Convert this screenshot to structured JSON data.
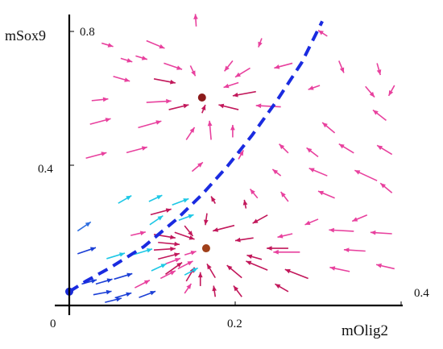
{
  "chart_data": {
    "type": "quiver",
    "xlabel": "mOlig2",
    "ylabel": "mSox9",
    "xlim": [
      0,
      0.4
    ],
    "ylim": [
      0,
      0.8
    ],
    "origin_label": "0",
    "x_ticks": [
      {
        "value": 0.2,
        "label": "0.2"
      },
      {
        "value": 0.4,
        "label": "0.4"
      }
    ],
    "y_ticks": [
      {
        "value": 0.4,
        "label": "0.4"
      },
      {
        "value": 0.8,
        "label": "0.8"
      }
    ],
    "colors": {
      "arrow_magenta": "#e8419e",
      "arrow_darkmagenta": "#c2185b",
      "arrow_cyan": "#1ec8e6",
      "arrow_blue": "#1b3fd6",
      "arrow_midblue": "#2f6fe0",
      "separatrix": "#1a2be0",
      "attractor": "#8b1a1a",
      "attractor_low": "#a0401a",
      "origin_point": "#1a2bd6",
      "axis": "#000000"
    },
    "separatrix": {
      "style": "dashed",
      "x": [
        0.0,
        0.02,
        0.05,
        0.09,
        0.13,
        0.16,
        0.19,
        0.22,
        0.25,
        0.28,
        0.305
      ],
      "y": [
        0.04,
        0.07,
        0.11,
        0.17,
        0.25,
        0.32,
        0.4,
        0.49,
        0.59,
        0.7,
        0.82
      ]
    },
    "fixed_points": [
      {
        "x": 0.16,
        "y": 0.6,
        "type": "stable"
      },
      {
        "x": 0.165,
        "y": 0.165,
        "type": "stable"
      },
      {
        "x": 0.0,
        "y": 0.04,
        "type": "stable"
      }
    ],
    "arrows": [
      {
        "x": 0.153,
        "y": 0.805,
        "dx": -0.001,
        "dy": 0.036,
        "color": "arrow_magenta"
      },
      {
        "x": 0.039,
        "y": 0.757,
        "dx": 0.014,
        "dy": -0.01,
        "color": "arrow_magenta"
      },
      {
        "x": 0.093,
        "y": 0.764,
        "dx": 0.022,
        "dy": -0.022,
        "color": "arrow_magenta"
      },
      {
        "x": 0.232,
        "y": 0.771,
        "dx": -0.004,
        "dy": -0.026,
        "color": "arrow_magenta"
      },
      {
        "x": 0.311,
        "y": 0.777,
        "dx": -0.011,
        "dy": 0.017,
        "color": "arrow_magenta"
      },
      {
        "x": 0.062,
        "y": 0.713,
        "dx": 0.014,
        "dy": -0.01,
        "color": "arrow_magenta"
      },
      {
        "x": 0.08,
        "y": 0.72,
        "dx": 0.014,
        "dy": -0.01,
        "color": "arrow_magenta"
      },
      {
        "x": 0.114,
        "y": 0.699,
        "dx": 0.022,
        "dy": -0.018,
        "color": "arrow_magenta"
      },
      {
        "x": 0.146,
        "y": 0.692,
        "dx": 0.006,
        "dy": -0.03,
        "color": "arrow_magenta"
      },
      {
        "x": 0.197,
        "y": 0.706,
        "dx": -0.01,
        "dy": -0.03,
        "color": "arrow_magenta"
      },
      {
        "x": 0.218,
        "y": 0.685,
        "dx": -0.018,
        "dy": -0.026,
        "color": "arrow_magenta"
      },
      {
        "x": 0.269,
        "y": 0.699,
        "dx": -0.022,
        "dy": -0.014,
        "color": "arrow_magenta"
      },
      {
        "x": 0.325,
        "y": 0.706,
        "dx": 0.006,
        "dy": -0.035,
        "color": "arrow_magenta"
      },
      {
        "x": 0.371,
        "y": 0.699,
        "dx": 0.004,
        "dy": -0.034,
        "color": "arrow_magenta"
      },
      {
        "x": 0.053,
        "y": 0.661,
        "dx": 0.02,
        "dy": -0.014,
        "color": "arrow_magenta"
      },
      {
        "x": 0.102,
        "y": 0.654,
        "dx": 0.026,
        "dy": -0.012,
        "color": "arrow_darkmagenta"
      },
      {
        "x": 0.204,
        "y": 0.643,
        "dx": -0.018,
        "dy": -0.014,
        "color": "arrow_magenta"
      },
      {
        "x": 0.225,
        "y": 0.617,
        "dx": -0.028,
        "dy": -0.012,
        "color": "arrow_darkmagenta"
      },
      {
        "x": 0.302,
        "y": 0.635,
        "dx": -0.014,
        "dy": -0.012,
        "color": "arrow_magenta"
      },
      {
        "x": 0.357,
        "y": 0.632,
        "dx": 0.011,
        "dy": -0.031,
        "color": "arrow_magenta"
      },
      {
        "x": 0.392,
        "y": 0.635,
        "dx": -0.007,
        "dy": -0.03,
        "color": "arrow_magenta"
      },
      {
        "x": 0.027,
        "y": 0.591,
        "dx": 0.02,
        "dy": 0.005,
        "color": "arrow_magenta"
      },
      {
        "x": 0.093,
        "y": 0.586,
        "dx": 0.03,
        "dy": 0.004,
        "color": "arrow_magenta"
      },
      {
        "x": 0.12,
        "y": 0.565,
        "dx": 0.024,
        "dy": 0.014,
        "color": "arrow_darkmagenta"
      },
      {
        "x": 0.16,
        "y": 0.555,
        "dx": 0.004,
        "dy": 0.024,
        "color": "arrow_darkmagenta"
      },
      {
        "x": 0.204,
        "y": 0.565,
        "dx": -0.024,
        "dy": 0.014,
        "color": "arrow_darkmagenta"
      },
      {
        "x": 0.255,
        "y": 0.573,
        "dx": -0.03,
        "dy": 0.004,
        "color": "arrow_magenta"
      },
      {
        "x": 0.025,
        "y": 0.523,
        "dx": 0.025,
        "dy": 0.016,
        "color": "arrow_magenta"
      },
      {
        "x": 0.083,
        "y": 0.513,
        "dx": 0.028,
        "dy": 0.019,
        "color": "arrow_magenta"
      },
      {
        "x": 0.141,
        "y": 0.478,
        "dx": 0.01,
        "dy": 0.036,
        "color": "arrow_magenta"
      },
      {
        "x": 0.171,
        "y": 0.478,
        "dx": -0.002,
        "dy": 0.055,
        "color": "arrow_magenta"
      },
      {
        "x": 0.197,
        "y": 0.485,
        "dx": 0.0,
        "dy": 0.036,
        "color": "arrow_magenta"
      },
      {
        "x": 0.204,
        "y": 0.422,
        "dx": 0.006,
        "dy": 0.026,
        "color": "arrow_magenta"
      },
      {
        "x": 0.02,
        "y": 0.425,
        "dx": 0.025,
        "dy": 0.016,
        "color": "arrow_magenta"
      },
      {
        "x": 0.069,
        "y": 0.441,
        "dx": 0.025,
        "dy": 0.016,
        "color": "arrow_magenta"
      },
      {
        "x": 0.32,
        "y": 0.498,
        "dx": -0.015,
        "dy": 0.03,
        "color": "arrow_magenta"
      },
      {
        "x": 0.382,
        "y": 0.534,
        "dx": -0.016,
        "dy": 0.03,
        "color": "arrow_magenta"
      },
      {
        "x": 0.264,
        "y": 0.44,
        "dx": -0.011,
        "dy": 0.026,
        "color": "arrow_magenta"
      },
      {
        "x": 0.3,
        "y": 0.429,
        "dx": -0.014,
        "dy": 0.026,
        "color": "arrow_magenta"
      },
      {
        "x": 0.343,
        "y": 0.44,
        "dx": -0.018,
        "dy": 0.026,
        "color": "arrow_magenta"
      },
      {
        "x": 0.389,
        "y": 0.436,
        "dx": -0.018,
        "dy": 0.026,
        "color": "arrow_magenta"
      },
      {
        "x": 0.255,
        "y": 0.374,
        "dx": -0.01,
        "dy": 0.019,
        "color": "arrow_magenta"
      },
      {
        "x": 0.148,
        "y": 0.387,
        "dx": 0.013,
        "dy": 0.026,
        "color": "arrow_magenta"
      },
      {
        "x": 0.311,
        "y": 0.374,
        "dx": -0.022,
        "dy": 0.022,
        "color": "arrow_magenta"
      },
      {
        "x": 0.371,
        "y": 0.36,
        "dx": -0.027,
        "dy": 0.03,
        "color": "arrow_magenta"
      },
      {
        "x": 0.389,
        "y": 0.325,
        "dx": -0.014,
        "dy": 0.028,
        "color": "arrow_magenta"
      },
      {
        "x": 0.227,
        "y": 0.31,
        "dx": -0.009,
        "dy": 0.026,
        "color": "arrow_magenta"
      },
      {
        "x": 0.176,
        "y": 0.294,
        "dx": -0.005,
        "dy": 0.021,
        "color": "arrow_darkmagenta"
      },
      {
        "x": 0.213,
        "y": 0.28,
        "dx": -0.002,
        "dy": 0.025,
        "color": "arrow_darkmagenta"
      },
      {
        "x": 0.264,
        "y": 0.3,
        "dx": -0.009,
        "dy": 0.028,
        "color": "arrow_magenta"
      },
      {
        "x": 0.32,
        "y": 0.31,
        "dx": -0.02,
        "dy": 0.02,
        "color": "arrow_magenta"
      },
      {
        "x": 0.166,
        "y": 0.266,
        "dx": -0.002,
        "dy": -0.034,
        "color": "arrow_darkmagenta"
      },
      {
        "x": 0.239,
        "y": 0.261,
        "dx": -0.018,
        "dy": -0.024,
        "color": "arrow_darkmagenta"
      },
      {
        "x": 0.3,
        "y": 0.249,
        "dx": -0.016,
        "dy": -0.016,
        "color": "arrow_magenta"
      },
      {
        "x": 0.359,
        "y": 0.261,
        "dx": -0.018,
        "dy": -0.018,
        "color": "arrow_magenta"
      },
      {
        "x": 0.389,
        "y": 0.207,
        "dx": -0.026,
        "dy": 0.004,
        "color": "arrow_magenta"
      },
      {
        "x": 0.343,
        "y": 0.214,
        "dx": -0.03,
        "dy": 0.004,
        "color": "arrow_magenta"
      },
      {
        "x": 0.269,
        "y": 0.207,
        "dx": -0.018,
        "dy": -0.01,
        "color": "arrow_magenta"
      },
      {
        "x": 0.222,
        "y": 0.195,
        "dx": -0.022,
        "dy": -0.008,
        "color": "arrow_darkmagenta"
      },
      {
        "x": 0.199,
        "y": 0.231,
        "dx": -0.026,
        "dy": -0.016,
        "color": "arrow_darkmagenta"
      },
      {
        "x": 0.139,
        "y": 0.23,
        "dx": 0.01,
        "dy": -0.03,
        "color": "arrow_darkmagenta"
      },
      {
        "x": 0.264,
        "y": 0.165,
        "dx": -0.026,
        "dy": 0.0,
        "color": "arrow_darkmagenta"
      },
      {
        "x": 0.278,
        "y": 0.154,
        "dx": -0.032,
        "dy": 0.0,
        "color": "arrow_magenta"
      },
      {
        "x": 0.357,
        "y": 0.157,
        "dx": -0.026,
        "dy": 0.004,
        "color": "arrow_magenta"
      },
      {
        "x": 0.392,
        "y": 0.106,
        "dx": -0.022,
        "dy": 0.012,
        "color": "arrow_magenta"
      },
      {
        "x": 0.338,
        "y": 0.098,
        "dx": -0.024,
        "dy": 0.012,
        "color": "arrow_magenta"
      },
      {
        "x": 0.288,
        "y": 0.078,
        "dx": -0.028,
        "dy": 0.026,
        "color": "arrow_darkmagenta"
      },
      {
        "x": 0.239,
        "y": 0.102,
        "dx": -0.026,
        "dy": 0.026,
        "color": "arrow_darkmagenta"
      },
      {
        "x": 0.232,
        "y": 0.133,
        "dx": -0.018,
        "dy": 0.012,
        "color": "arrow_darkmagenta"
      },
      {
        "x": 0.208,
        "y": 0.08,
        "dx": -0.018,
        "dy": 0.036,
        "color": "arrow_darkmagenta"
      },
      {
        "x": 0.176,
        "y": 0.08,
        "dx": -0.01,
        "dy": 0.04,
        "color": "arrow_darkmagenta"
      },
      {
        "x": 0.158,
        "y": 0.056,
        "dx": 0.0,
        "dy": 0.04,
        "color": "arrow_darkmagenta"
      },
      {
        "x": 0.141,
        "y": 0.07,
        "dx": 0.01,
        "dy": 0.04,
        "color": "arrow_darkmagenta"
      },
      {
        "x": 0.116,
        "y": 0.09,
        "dx": 0.02,
        "dy": 0.034,
        "color": "arrow_darkmagenta"
      },
      {
        "x": 0.107,
        "y": 0.134,
        "dx": 0.026,
        "dy": 0.016,
        "color": "arrow_darkmagenta"
      },
      {
        "x": 0.102,
        "y": 0.16,
        "dx": 0.026,
        "dy": 0.004,
        "color": "arrow_darkmagenta"
      },
      {
        "x": 0.107,
        "y": 0.182,
        "dx": 0.026,
        "dy": -0.006,
        "color": "arrow_darkmagenta"
      },
      {
        "x": 0.102,
        "y": 0.205,
        "dx": 0.026,
        "dy": -0.01,
        "color": "arrow_darkmagenta"
      },
      {
        "x": 0.127,
        "y": 0.211,
        "dx": 0.024,
        "dy": -0.02,
        "color": "arrow_darkmagenta"
      },
      {
        "x": 0.098,
        "y": 0.262,
        "dx": 0.025,
        "dy": 0.016,
        "color": "arrow_darkmagenta"
      },
      {
        "x": 0.074,
        "y": 0.202,
        "dx": 0.018,
        "dy": 0.01,
        "color": "arrow_magenta"
      },
      {
        "x": 0.116,
        "y": 0.12,
        "dx": 0.018,
        "dy": 0.016,
        "color": "arrow_magenta"
      },
      {
        "x": 0.139,
        "y": 0.146,
        "dx": 0.014,
        "dy": 0.01,
        "color": "arrow_magenta"
      },
      {
        "x": 0.131,
        "y": 0.106,
        "dx": 0.018,
        "dy": 0.022,
        "color": "arrow_magenta"
      },
      {
        "x": 0.11,
        "y": 0.078,
        "dx": 0.018,
        "dy": 0.022,
        "color": "arrow_magenta"
      },
      {
        "x": 0.079,
        "y": 0.051,
        "dx": 0.018,
        "dy": 0.022,
        "color": "arrow_magenta"
      },
      {
        "x": 0.139,
        "y": 0.035,
        "dx": 0.008,
        "dy": 0.028,
        "color": "arrow_magenta"
      },
      {
        "x": 0.176,
        "y": 0.025,
        "dx": -0.002,
        "dy": 0.032,
        "color": "arrow_darkmagenta"
      },
      {
        "x": 0.208,
        "y": 0.025,
        "dx": -0.01,
        "dy": 0.032,
        "color": "arrow_darkmagenta"
      },
      {
        "x": 0.264,
        "y": 0.04,
        "dx": -0.016,
        "dy": 0.022,
        "color": "arrow_darkmagenta"
      },
      {
        "x": 0.124,
        "y": 0.29,
        "dx": 0.02,
        "dy": 0.018,
        "color": "arrow_cyan"
      },
      {
        "x": 0.132,
        "y": 0.246,
        "dx": 0.018,
        "dy": 0.016,
        "color": "arrow_cyan"
      },
      {
        "x": 0.096,
        "y": 0.3,
        "dx": 0.016,
        "dy": 0.018,
        "color": "arrow_cyan"
      },
      {
        "x": 0.059,
        "y": 0.295,
        "dx": 0.016,
        "dy": 0.022,
        "color": "arrow_cyan"
      },
      {
        "x": 0.097,
        "y": 0.233,
        "dx": 0.016,
        "dy": 0.026,
        "color": "arrow_cyan"
      },
      {
        "x": 0.078,
        "y": 0.147,
        "dx": 0.022,
        "dy": 0.016,
        "color": "arrow_cyan"
      },
      {
        "x": 0.045,
        "y": 0.135,
        "dx": 0.022,
        "dy": 0.016,
        "color": "arrow_cyan"
      },
      {
        "x": 0.099,
        "y": 0.1,
        "dx": 0.018,
        "dy": 0.02,
        "color": "arrow_cyan"
      },
      {
        "x": 0.139,
        "y": 0.088,
        "dx": 0.016,
        "dy": 0.02,
        "color": "arrow_cyan"
      },
      {
        "x": 0.01,
        "y": 0.215,
        "dx": 0.016,
        "dy": 0.026,
        "color": "arrow_midblue"
      },
      {
        "x": 0.01,
        "y": 0.149,
        "dx": 0.022,
        "dy": 0.018,
        "color": "arrow_blue"
      },
      {
        "x": 0.054,
        "y": 0.076,
        "dx": 0.022,
        "dy": 0.016,
        "color": "arrow_blue"
      },
      {
        "x": 0.032,
        "y": 0.062,
        "dx": 0.02,
        "dy": 0.014,
        "color": "arrow_blue"
      },
      {
        "x": 0.015,
        "y": 0.062,
        "dx": 0.018,
        "dy": 0.012,
        "color": "arrow_blue"
      },
      {
        "x": 0.029,
        "y": 0.031,
        "dx": 0.022,
        "dy": 0.01,
        "color": "arrow_blue"
      },
      {
        "x": 0.055,
        "y": 0.022,
        "dx": 0.02,
        "dy": 0.014,
        "color": "arrow_blue"
      },
      {
        "x": 0.084,
        "y": 0.023,
        "dx": 0.02,
        "dy": 0.018,
        "color": "arrow_blue"
      },
      {
        "x": 0.043,
        "y": 0.009,
        "dx": 0.02,
        "dy": 0.012,
        "color": "arrow_blue"
      },
      {
        "x": 0.18,
        "y": 0.52,
        "dx": 0.0,
        "dy": 0.0,
        "color": "arrow_magenta"
      }
    ]
  }
}
